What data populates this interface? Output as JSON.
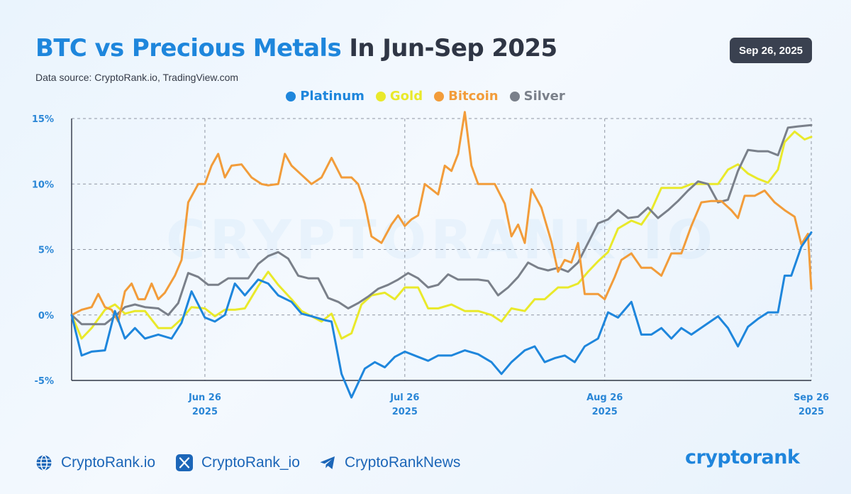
{
  "header": {
    "title_accent": "BTC vs Precious Metals",
    "title_rest": "In Jun-Sep 2025",
    "source": "Data source: CryptoRank.io, TradingView.com",
    "date_badge": "Sep 26, 2025"
  },
  "watermark": "CRYPTORANK.IO",
  "footer": {
    "website": "CryptoRank.io",
    "x_handle": "CryptoRank_io",
    "telegram": "CryptoRankNews",
    "brand": "cryptorank"
  },
  "icons": {
    "website": "globe-icon",
    "x_handle": "x-logo-icon",
    "telegram": "telegram-icon"
  },
  "colors": {
    "platinum": "#1e86dc",
    "gold": "#e9e92a",
    "bitcoin": "#f29c3a",
    "silver": "#7a808a",
    "axis_text": "#2a86d6",
    "grid": "#8f96a3"
  },
  "chart_data": {
    "type": "line",
    "x_labels": [
      {
        "line1": "Jun 26",
        "line2": "2025",
        "index": 20
      },
      {
        "line1": "Jul 26",
        "line2": "2025",
        "index": 50
      },
      {
        "line1": "Aug 26",
        "line2": "2025",
        "index": 80
      },
      {
        "line1": "Sep 26",
        "line2": "2025",
        "index": 111
      }
    ],
    "y_ticks": [
      {
        "value": 15,
        "label": "15%"
      },
      {
        "value": 10,
        "label": "10%"
      },
      {
        "value": 5,
        "label": "5%"
      },
      {
        "value": 0,
        "label": "0%"
      },
      {
        "value": -5,
        "label": "-5%"
      }
    ],
    "ylim": [
      -5,
      15
    ],
    "x_count": 112,
    "legend_placement": "top-center",
    "grid": true,
    "series": [
      {
        "name": "Platinum",
        "key": "platinum",
        "points": [
          [
            0,
            0
          ],
          [
            1.5,
            -3.1
          ],
          [
            3,
            -2.8
          ],
          [
            5,
            -2.7
          ],
          [
            6.5,
            0.3
          ],
          [
            8,
            -1.8
          ],
          [
            9.5,
            -1.0
          ],
          [
            11,
            -1.8
          ],
          [
            13,
            -1.5
          ],
          [
            15,
            -1.8
          ],
          [
            16.5,
            -0.6
          ],
          [
            18,
            1.8
          ],
          [
            20,
            -0.2
          ],
          [
            21.5,
            -0.5
          ],
          [
            23,
            0
          ],
          [
            24.5,
            2.4
          ],
          [
            26,
            1.5
          ],
          [
            28,
            2.7
          ],
          [
            29.5,
            2.4
          ],
          [
            31,
            1.5
          ],
          [
            33,
            1.0
          ],
          [
            34.5,
            0.1
          ],
          [
            36,
            -0.1
          ],
          [
            38,
            -0.4
          ],
          [
            39,
            -0.5
          ],
          [
            40.5,
            -4.5
          ],
          [
            42,
            -6.3
          ],
          [
            44,
            -4.1
          ],
          [
            45.5,
            -3.6
          ],
          [
            47,
            -4.0
          ],
          [
            48.5,
            -3.2
          ],
          [
            50,
            -2.8
          ],
          [
            52,
            -3.2
          ],
          [
            53.5,
            -3.5
          ],
          [
            55,
            -3.1
          ],
          [
            57,
            -3.1
          ],
          [
            59,
            -2.7
          ],
          [
            61,
            -3.0
          ],
          [
            63,
            -3.6
          ],
          [
            64.5,
            -4.5
          ],
          [
            66,
            -3.6
          ],
          [
            68,
            -2.7
          ],
          [
            69.5,
            -2.4
          ],
          [
            71,
            -3.6
          ],
          [
            72.5,
            -3.3
          ],
          [
            74,
            -3.1
          ],
          [
            75.5,
            -3.6
          ],
          [
            77,
            -2.4
          ],
          [
            79,
            -1.8
          ],
          [
            80.5,
            0.2
          ],
          [
            82,
            -0.2
          ],
          [
            84,
            1.0
          ],
          [
            85.5,
            -1.5
          ],
          [
            87,
            -1.5
          ],
          [
            88.5,
            -1.0
          ],
          [
            90,
            -1.8
          ],
          [
            91.5,
            -1.0
          ],
          [
            93,
            -1.5
          ],
          [
            95,
            -0.8
          ],
          [
            97,
            -0.1
          ],
          [
            98.5,
            -1.0
          ],
          [
            100,
            -2.4
          ],
          [
            101.5,
            -0.9
          ],
          [
            103,
            -0.3
          ],
          [
            104.5,
            0.2
          ],
          [
            106,
            0.2
          ],
          [
            107,
            3.0
          ],
          [
            108,
            3.0
          ],
          [
            109.5,
            5.2
          ],
          [
            111,
            6.3
          ]
        ]
      },
      {
        "name": "Gold",
        "key": "gold",
        "points": [
          [
            0,
            0
          ],
          [
            1.5,
            -1.8
          ],
          [
            3,
            -1.0
          ],
          [
            5,
            0.4
          ],
          [
            6.5,
            0.8
          ],
          [
            8,
            0.1
          ],
          [
            9.5,
            0.3
          ],
          [
            11,
            0.3
          ],
          [
            13,
            -1.0
          ],
          [
            15,
            -1.0
          ],
          [
            16.5,
            -0.3
          ],
          [
            18,
            0.6
          ],
          [
            20,
            0.5
          ],
          [
            21.5,
            -0.1
          ],
          [
            23,
            0.4
          ],
          [
            24.5,
            0.4
          ],
          [
            26,
            0.5
          ],
          [
            28,
            2.2
          ],
          [
            29.5,
            3.3
          ],
          [
            31,
            2.3
          ],
          [
            33,
            1.2
          ],
          [
            34.5,
            0.3
          ],
          [
            36,
            -0.1
          ],
          [
            37.5,
            -0.5
          ],
          [
            39,
            0.1
          ],
          [
            40.5,
            -1.8
          ],
          [
            42,
            -1.4
          ],
          [
            43.5,
            0.8
          ],
          [
            45,
            1.5
          ],
          [
            47,
            1.7
          ],
          [
            48.5,
            1.2
          ],
          [
            50,
            2.1
          ],
          [
            52,
            2.1
          ],
          [
            53.5,
            0.5
          ],
          [
            55,
            0.5
          ],
          [
            57,
            0.8
          ],
          [
            59,
            0.3
          ],
          [
            61,
            0.3
          ],
          [
            63,
            0
          ],
          [
            64.5,
            -0.5
          ],
          [
            66,
            0.5
          ],
          [
            68,
            0.3
          ],
          [
            69.5,
            1.2
          ],
          [
            71,
            1.2
          ],
          [
            73,
            2.1
          ],
          [
            74.5,
            2.1
          ],
          [
            76,
            2.4
          ],
          [
            77.5,
            3.3
          ],
          [
            79,
            4.1
          ],
          [
            80.5,
            4.8
          ],
          [
            82,
            6.6
          ],
          [
            84,
            7.2
          ],
          [
            85.5,
            6.9
          ],
          [
            87,
            8.0
          ],
          [
            88.5,
            9.7
          ],
          [
            90,
            9.7
          ],
          [
            91.5,
            9.7
          ],
          [
            93,
            10.0
          ],
          [
            95,
            10.0
          ],
          [
            97,
            10.0
          ],
          [
            98.5,
            11.1
          ],
          [
            100,
            11.5
          ],
          [
            101.5,
            10.8
          ],
          [
            103,
            10.4
          ],
          [
            104.5,
            10.1
          ],
          [
            106,
            11.1
          ],
          [
            107,
            13.2
          ],
          [
            108.5,
            14.0
          ],
          [
            110,
            13.4
          ],
          [
            111,
            13.6
          ]
        ]
      },
      {
        "name": "Bitcoin",
        "key": "bitcoin",
        "points": [
          [
            0,
            0
          ],
          [
            1.5,
            0.4
          ],
          [
            3,
            0.6
          ],
          [
            4,
            1.6
          ],
          [
            5,
            0.6
          ],
          [
            6,
            0.4
          ],
          [
            7,
            -0.5
          ],
          [
            8,
            1.8
          ],
          [
            9,
            2.4
          ],
          [
            10,
            1.2
          ],
          [
            11,
            1.2
          ],
          [
            12,
            2.4
          ],
          [
            13,
            1.2
          ],
          [
            14,
            1.7
          ],
          [
            15.5,
            3.0
          ],
          [
            16.5,
            4.2
          ],
          [
            17.5,
            8.6
          ],
          [
            19,
            10.0
          ],
          [
            20,
            10.0
          ],
          [
            21,
            11.4
          ],
          [
            22,
            12.3
          ],
          [
            23,
            10.5
          ],
          [
            24,
            11.4
          ],
          [
            25.5,
            11.5
          ],
          [
            27,
            10.5
          ],
          [
            28.5,
            10.0
          ],
          [
            29.5,
            9.9
          ],
          [
            31,
            10.0
          ],
          [
            32,
            12.3
          ],
          [
            33,
            11.4
          ],
          [
            34.5,
            10.7
          ],
          [
            36,
            10.0
          ],
          [
            37.5,
            10.5
          ],
          [
            39,
            12.0
          ],
          [
            40.5,
            10.5
          ],
          [
            42,
            10.5
          ],
          [
            43,
            10.0
          ],
          [
            44,
            8.5
          ],
          [
            45,
            6.0
          ],
          [
            46.5,
            5.5
          ],
          [
            48,
            6.9
          ],
          [
            49,
            7.6
          ],
          [
            50,
            6.8
          ],
          [
            51,
            7.3
          ],
          [
            52,
            7.6
          ],
          [
            53,
            10.0
          ],
          [
            54,
            9.6
          ],
          [
            55,
            9.2
          ],
          [
            56,
            11.4
          ],
          [
            57,
            11.0
          ],
          [
            58,
            12.3
          ],
          [
            59,
            15.5
          ],
          [
            60,
            11.4
          ],
          [
            61,
            10.0
          ],
          [
            62,
            10.0
          ],
          [
            63.5,
            10.0
          ],
          [
            65,
            8.5
          ],
          [
            66,
            6.0
          ],
          [
            67,
            6.9
          ],
          [
            68,
            5.5
          ],
          [
            69,
            9.6
          ],
          [
            70.5,
            8.2
          ],
          [
            72,
            5.6
          ],
          [
            73,
            3.3
          ],
          [
            74,
            4.2
          ],
          [
            75,
            4.0
          ],
          [
            76,
            5.5
          ],
          [
            77,
            1.6
          ],
          [
            79,
            1.6
          ],
          [
            80,
            1.2
          ],
          [
            81.5,
            2.9
          ],
          [
            82.5,
            4.2
          ],
          [
            84,
            4.7
          ],
          [
            85.5,
            3.6
          ],
          [
            87,
            3.6
          ],
          [
            88.5,
            3.0
          ],
          [
            90,
            4.7
          ],
          [
            91.5,
            4.7
          ],
          [
            93,
            6.8
          ],
          [
            94.5,
            8.6
          ],
          [
            96,
            8.7
          ],
          [
            97.5,
            8.7
          ],
          [
            99,
            8.0
          ],
          [
            100,
            7.4
          ],
          [
            101,
            9.1
          ],
          [
            102.5,
            9.1
          ],
          [
            104,
            9.5
          ],
          [
            105.5,
            8.6
          ],
          [
            107,
            8.0
          ],
          [
            108.5,
            7.5
          ],
          [
            109.5,
            5.4
          ],
          [
            110.5,
            6.2
          ],
          [
            111,
            2.0
          ]
        ]
      },
      {
        "name": "Silver",
        "key": "silver",
        "points": [
          [
            0,
            0
          ],
          [
            1.5,
            -0.7
          ],
          [
            3,
            -0.7
          ],
          [
            5,
            -0.7
          ],
          [
            6.5,
            -0.1
          ],
          [
            8,
            0.6
          ],
          [
            9.5,
            0.8
          ],
          [
            11,
            0.6
          ],
          [
            13,
            0.5
          ],
          [
            14.5,
            0
          ],
          [
            16,
            0.9
          ],
          [
            17.5,
            3.2
          ],
          [
            19,
            2.9
          ],
          [
            20.5,
            2.3
          ],
          [
            22,
            2.3
          ],
          [
            23.5,
            2.8
          ],
          [
            25,
            2.8
          ],
          [
            26.5,
            2.8
          ],
          [
            28,
            3.9
          ],
          [
            29.5,
            4.5
          ],
          [
            31,
            4.8
          ],
          [
            32.5,
            4.3
          ],
          [
            34,
            3.0
          ],
          [
            35.5,
            2.8
          ],
          [
            37,
            2.8
          ],
          [
            38.5,
            1.3
          ],
          [
            40,
            1.0
          ],
          [
            41.5,
            0.5
          ],
          [
            43,
            0.9
          ],
          [
            44.5,
            1.4
          ],
          [
            46,
            2.0
          ],
          [
            47.5,
            2.3
          ],
          [
            49,
            2.7
          ],
          [
            50.5,
            3.2
          ],
          [
            52,
            2.8
          ],
          [
            53.5,
            2.1
          ],
          [
            55,
            2.3
          ],
          [
            56.5,
            3.1
          ],
          [
            58,
            2.7
          ],
          [
            59.5,
            2.7
          ],
          [
            61,
            2.7
          ],
          [
            62.5,
            2.6
          ],
          [
            64,
            1.5
          ],
          [
            65.5,
            2.1
          ],
          [
            67,
            2.9
          ],
          [
            68.5,
            4.0
          ],
          [
            70,
            3.6
          ],
          [
            71.5,
            3.4
          ],
          [
            73,
            3.6
          ],
          [
            74.5,
            3.3
          ],
          [
            76,
            4.0
          ],
          [
            77.5,
            5.5
          ],
          [
            79,
            7.0
          ],
          [
            80.5,
            7.3
          ],
          [
            82,
            8.0
          ],
          [
            83.5,
            7.4
          ],
          [
            85,
            7.5
          ],
          [
            86.5,
            8.2
          ],
          [
            88,
            7.4
          ],
          [
            89.5,
            8.0
          ],
          [
            91,
            8.7
          ],
          [
            92.5,
            9.5
          ],
          [
            94,
            10.2
          ],
          [
            95.5,
            10.0
          ],
          [
            97,
            8.6
          ],
          [
            98.5,
            8.8
          ],
          [
            100,
            11.0
          ],
          [
            101.5,
            12.6
          ],
          [
            103,
            12.5
          ],
          [
            104.5,
            12.5
          ],
          [
            106,
            12.2
          ],
          [
            107.5,
            14.3
          ],
          [
            109,
            14.4
          ],
          [
            111,
            14.5
          ]
        ]
      }
    ]
  }
}
